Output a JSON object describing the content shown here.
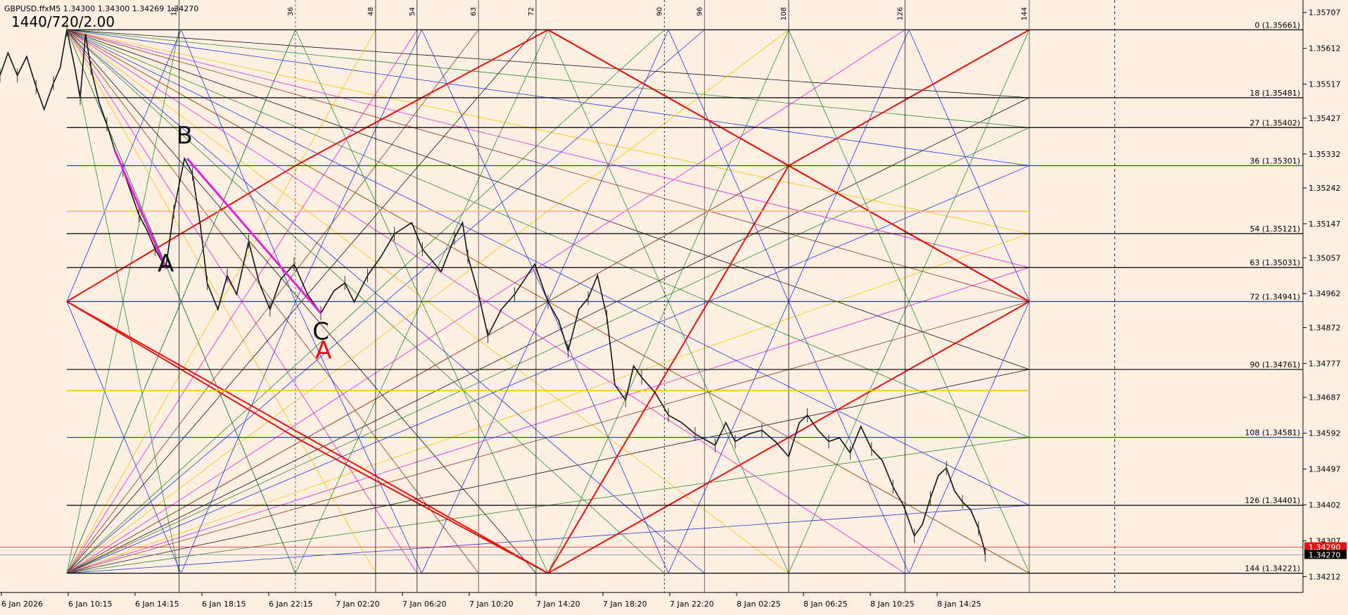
{
  "header": {
    "symbol_line": "GBPUSD.ffxM5  1.34300 1.34300 1.34269 1.34270",
    "square_label": "1440/720/2.00"
  },
  "colors": {
    "background": "#fdf0e3",
    "grid": "#1f3f8a",
    "red": "#e81010",
    "yellow": "#f5c400",
    "magenta": "#e020e0",
    "green": "#2c8a2c",
    "blue": "#2233dd",
    "brown": "#8b3a1a",
    "black": "#111111",
    "bid_tag": "#e81010",
    "ask_tag": "#000000"
  },
  "chart_data": {
    "type": "line",
    "title": "GBPUSD.ffxM5",
    "ylim": [
      1.3417,
      1.3574
    ],
    "y_ticks": [
      "1.35707",
      "1.35612",
      "1.35517",
      "1.35427",
      "1.35332",
      "1.35242",
      "1.35147",
      "1.35057",
      "1.34962",
      "1.34872",
      "1.34777",
      "1.34687",
      "1.34592",
      "1.34497",
      "1.34402",
      "1.34307",
      "1.34212"
    ],
    "x_ticks": [
      "6 Jan 2026",
      "6 Jan 10:15",
      "6 Jan 14:15",
      "6 Jan 18:15",
      "6 Jan 22:15",
      "7 Jan 02:20",
      "7 Jan 06:20",
      "7 Jan 10:20",
      "7 Jan 14:20",
      "7 Jan 18:20",
      "7 Jan 22:20",
      "8 Jan 02:25",
      "8 Jan 06:25",
      "8 Jan 10:25",
      "8 Jan 14:25"
    ],
    "x_tick_positions": [
      0,
      0.05,
      0.1,
      0.15,
      0.2,
      0.25,
      0.3,
      0.35,
      0.4,
      0.45,
      0.5,
      0.55,
      0.6,
      0.65,
      0.7
    ],
    "top_markers": [
      "18",
      "36",
      "48",
      "54",
      "63",
      "72",
      "90",
      "96",
      "108",
      "126",
      "144"
    ],
    "top_marker_positions": [
      0.134,
      0.221,
      0.281,
      0.312,
      0.358,
      0.401,
      0.497,
      0.527,
      0.59,
      0.677,
      0.77
    ],
    "gann_levels": [
      {
        "label": "0 (1.35661)",
        "value": 1.35661
      },
      {
        "label": "18 (1.35481)",
        "value": 1.35481
      },
      {
        "label": "27 (1.35402)",
        "value": 1.35402
      },
      {
        "label": "36 (1.35301)",
        "value": 1.35301
      },
      {
        "label": "54 (1.35121)",
        "value": 1.35121
      },
      {
        "label": "63 (1.35031)",
        "value": 1.35031
      },
      {
        "label": "72 (1.34941)",
        "value": 1.34941
      },
      {
        "label": "90 (1.34761)",
        "value": 1.34761
      },
      {
        "label": "108 (1.34581)",
        "value": 1.34581
      },
      {
        "label": "126 (1.34401)",
        "value": 1.34401
      },
      {
        "label": "144 (1.34221)",
        "value": 1.34221
      }
    ],
    "yellow_levels": [
      1.3518,
      1.34705
    ],
    "current_bid": "1.34290",
    "current_ask": "1.34270",
    "wave_labels": [
      {
        "text": "A",
        "x": 0.124,
        "y": 1.3502,
        "color": "#111111"
      },
      {
        "text": "B",
        "x": 0.138,
        "y": 1.3536,
        "color": "#111111"
      },
      {
        "text": "C",
        "x": 0.24,
        "y": 1.3484,
        "color": "#111111"
      },
      {
        "text": "A",
        "x": 0.242,
        "y": 1.3479,
        "color": "#e81010"
      }
    ],
    "price_path": [
      [
        0.0,
        1.3554
      ],
      [
        0.006,
        1.356
      ],
      [
        0.013,
        1.3554
      ],
      [
        0.02,
        1.3559
      ],
      [
        0.027,
        1.3551
      ],
      [
        0.033,
        1.3545
      ],
      [
        0.04,
        1.3552
      ],
      [
        0.045,
        1.3556
      ],
      [
        0.05,
        1.35661
      ],
      [
        0.056,
        1.3556
      ],
      [
        0.06,
        1.3548
      ],
      [
        0.064,
        1.3565
      ],
      [
        0.068,
        1.3556
      ],
      [
        0.074,
        1.3547
      ],
      [
        0.08,
        1.3541
      ],
      [
        0.086,
        1.3534
      ],
      [
        0.092,
        1.3529
      ],
      [
        0.098,
        1.3523
      ],
      [
        0.104,
        1.3517
      ],
      [
        0.11,
        1.3513
      ],
      [
        0.116,
        1.3508
      ],
      [
        0.124,
        1.3503
      ],
      [
        0.13,
        1.3518
      ],
      [
        0.138,
        1.3532
      ],
      [
        0.144,
        1.3528
      ],
      [
        0.15,
        1.3514
      ],
      [
        0.155,
        1.3499
      ],
      [
        0.163,
        1.3492
      ],
      [
        0.17,
        1.3501
      ],
      [
        0.177,
        1.3496
      ],
      [
        0.186,
        1.351
      ],
      [
        0.194,
        1.3499
      ],
      [
        0.202,
        1.3492
      ],
      [
        0.21,
        1.35
      ],
      [
        0.22,
        1.3504
      ],
      [
        0.23,
        1.3496
      ],
      [
        0.24,
        1.3491
      ],
      [
        0.25,
        1.3497
      ],
      [
        0.258,
        1.3499
      ],
      [
        0.265,
        1.3494
      ],
      [
        0.275,
        1.3501
      ],
      [
        0.285,
        1.3506
      ],
      [
        0.295,
        1.3512
      ],
      [
        0.308,
        1.3515
      ],
      [
        0.316,
        1.3508
      ],
      [
        0.33,
        1.3502
      ],
      [
        0.34,
        1.3511
      ],
      [
        0.346,
        1.3515
      ],
      [
        0.35,
        1.3506
      ],
      [
        0.358,
        1.3496
      ],
      [
        0.365,
        1.3485
      ],
      [
        0.375,
        1.3492
      ],
      [
        0.385,
        1.3496
      ],
      [
        0.4,
        1.3504
      ],
      [
        0.41,
        1.3494
      ],
      [
        0.418,
        1.3489
      ],
      [
        0.425,
        1.3481
      ],
      [
        0.433,
        1.3492
      ],
      [
        0.44,
        1.3495
      ],
      [
        0.447,
        1.3501
      ],
      [
        0.454,
        1.349
      ],
      [
        0.46,
        1.3472
      ],
      [
        0.468,
        1.3468
      ],
      [
        0.474,
        1.3477
      ],
      [
        0.48,
        1.3474
      ],
      [
        0.49,
        1.347
      ],
      [
        0.5,
        1.3464
      ],
      [
        0.51,
        1.3462
      ],
      [
        0.52,
        1.3459
      ],
      [
        0.53,
        1.3457
      ],
      [
        0.535,
        1.3456
      ],
      [
        0.543,
        1.3462
      ],
      [
        0.55,
        1.3457
      ],
      [
        0.56,
        1.3459
      ],
      [
        0.57,
        1.346
      ],
      [
        0.58,
        1.3457
      ],
      [
        0.59,
        1.3453
      ],
      [
        0.598,
        1.3462
      ],
      [
        0.604,
        1.3464
      ],
      [
        0.612,
        1.346
      ],
      [
        0.62,
        1.3457
      ],
      [
        0.628,
        1.3458
      ],
      [
        0.636,
        1.3454
      ],
      [
        0.644,
        1.3461
      ],
      [
        0.652,
        1.3455
      ],
      [
        0.66,
        1.3452
      ],
      [
        0.668,
        1.3445
      ],
      [
        0.676,
        1.344
      ],
      [
        0.684,
        1.3432
      ],
      [
        0.69,
        1.3435
      ],
      [
        0.696,
        1.3442
      ],
      [
        0.702,
        1.3448
      ],
      [
        0.708,
        1.345
      ],
      [
        0.714,
        1.3444
      ],
      [
        0.72,
        1.3441
      ],
      [
        0.726,
        1.3439
      ],
      [
        0.732,
        1.3434
      ],
      [
        0.736,
        1.3429
      ],
      [
        0.737,
        1.3427
      ]
    ]
  }
}
